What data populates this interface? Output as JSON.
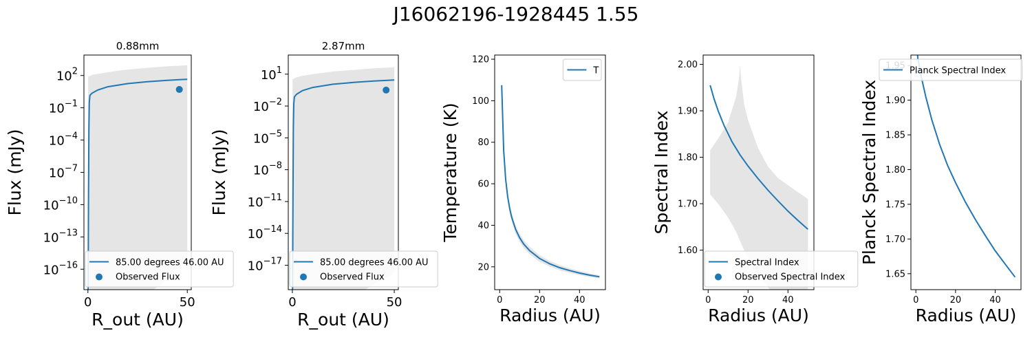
{
  "figure": {
    "title": "J16062196-1928445  1.55"
  },
  "colors": {
    "line": "#1f77b4",
    "band": "#e5e5e5",
    "axes": "#000000",
    "legend_border": "#cccccc"
  },
  "chart_data": [
    {
      "type": "line",
      "title": "0.88mm",
      "xlabel": "R_out (AU)",
      "ylabel": "Flux (mJy)",
      "yscale": "log",
      "xlim": [
        -2,
        52
      ],
      "ylim_log10": [
        -17.9,
        3.9
      ],
      "xticks": [
        0,
        50
      ],
      "yticks_exp": [
        2,
        -1,
        -4,
        -7,
        -10,
        -13,
        -16
      ],
      "legend_position": "lower right",
      "series": [
        {
          "name": "85.00 degrees 46.00 AU",
          "kind": "line",
          "x": [
            0.1,
            0.3,
            0.5,
            0.7,
            1,
            2,
            5,
            10,
            20,
            30,
            40,
            46,
            50
          ],
          "log10_y": [
            -19,
            -10,
            -3,
            -0.5,
            0.15,
            0.35,
            0.65,
            0.95,
            1.25,
            1.42,
            1.55,
            1.61,
            1.65
          ]
        },
        {
          "name": "Observed Flux",
          "kind": "scatter",
          "x": [
            46
          ],
          "log10_y": [
            0.7
          ]
        }
      ],
      "band": {
        "x": [
          0.1,
          1,
          2,
          5,
          10,
          15,
          20,
          30,
          40,
          50
        ],
        "upper_log10": [
          1.9,
          1.95,
          2.05,
          2.15,
          2.3,
          2.45,
          2.55,
          2.72,
          2.85,
          2.95
        ],
        "lower_log10": [
          -17,
          -18,
          -18.8,
          -19.5,
          -19.9,
          -20.5,
          -19.9,
          -18.3,
          -17.0,
          -15.0
        ]
      }
    },
    {
      "type": "line",
      "title": "2.87mm",
      "xlabel": "R_out (AU)",
      "ylabel": "Flux (mJy)",
      "yscale": "log",
      "xlim": [
        -2,
        52
      ],
      "ylim_log10": [
        -19.3,
        2.8
      ],
      "xticks": [
        0,
        50
      ],
      "yticks_exp": [
        1,
        -2,
        -5,
        -8,
        -11,
        -14,
        -17
      ],
      "legend_position": "lower right",
      "series": [
        {
          "name": "85.00 degrees 46.00 AU",
          "kind": "line",
          "x": [
            0.1,
            0.3,
            0.5,
            0.7,
            1,
            2,
            5,
            10,
            20,
            30,
            40,
            46,
            50
          ],
          "log10_y": [
            -20,
            -11,
            -4,
            -1.8,
            -1.15,
            -0.9,
            -0.55,
            -0.25,
            0.05,
            0.22,
            0.35,
            0.41,
            0.45
          ]
        },
        {
          "name": "Observed Flux",
          "kind": "scatter",
          "x": [
            46
          ],
          "log10_y": [
            -0.5
          ]
        }
      ],
      "band": {
        "x": [
          0.1,
          1,
          2,
          5,
          10,
          15,
          20,
          30,
          40,
          50
        ],
        "upper_log10": [
          0.5,
          0.6,
          0.7,
          0.85,
          1.0,
          1.12,
          1.25,
          1.4,
          1.55,
          1.65
        ],
        "lower_log10": [
          -19,
          -19.5,
          -20,
          -21,
          -21,
          -21.5,
          -21,
          -20,
          -18.8,
          -17.8
        ]
      }
    },
    {
      "type": "line",
      "xlabel": "Radius (AU)",
      "ylabel": "Temperature (K)",
      "xlim": [
        -2.5,
        53
      ],
      "ylim": [
        9,
        122
      ],
      "xticks": [
        0,
        20,
        40
      ],
      "yticks": [
        20,
        40,
        60,
        80,
        100,
        120
      ],
      "legend_position": "upper right",
      "series": [
        {
          "name": "T",
          "kind": "line",
          "x": [
            1,
            2,
            3,
            4,
            5,
            6,
            8,
            10,
            12,
            15,
            20,
            25,
            30,
            35,
            40,
            45,
            50
          ],
          "y": [
            107.5,
            76,
            62,
            53.8,
            48.1,
            43.9,
            38,
            34,
            31,
            27.8,
            24,
            21.5,
            19.6,
            18.2,
            17,
            16,
            15.2
          ]
        }
      ],
      "band": {
        "x": [
          1,
          2,
          3,
          4,
          5,
          6,
          8,
          10,
          12,
          15,
          20,
          25,
          30,
          35,
          40,
          45,
          50
        ],
        "upper": [
          108.5,
          77.5,
          63.5,
          55.5,
          50,
          45.8,
          40,
          36,
          33,
          29.6,
          25.6,
          22.9,
          20.9,
          19.3,
          18,
          16.9,
          16
        ],
        "lower": [
          106.5,
          74.5,
          60.5,
          52,
          46.2,
          42,
          36,
          32,
          29,
          26,
          22.4,
          20.1,
          18.3,
          17.1,
          16,
          15.1,
          14.4
        ]
      }
    },
    {
      "type": "line",
      "xlabel": "Radius (AU)",
      "ylabel": "Spectral Index",
      "xlim": [
        -2.5,
        53
      ],
      "ylim": [
        1.515,
        2.02
      ],
      "xticks": [
        0,
        20,
        40
      ],
      "yticks": [
        1.6,
        1.7,
        1.8,
        1.9,
        2.0
      ],
      "legend_position": "lower right",
      "series": [
        {
          "name": "Spectral Index",
          "kind": "line",
          "x": [
            1,
            3,
            5,
            8,
            12,
            16,
            20,
            25,
            30,
            35,
            40,
            45,
            50
          ],
          "y": [
            1.955,
            1.925,
            1.9,
            1.868,
            1.833,
            1.805,
            1.781,
            1.754,
            1.729,
            1.706,
            1.684,
            1.664,
            1.645
          ]
        },
        {
          "name": "Observed Spectral Index",
          "kind": "scatter",
          "x": [],
          "y": []
        }
      ],
      "band": {
        "x": [
          1,
          5,
          10,
          14,
          15.5,
          16,
          16.5,
          18,
          20,
          25,
          30,
          35,
          40,
          45,
          50
        ],
        "upper": [
          1.815,
          1.84,
          1.875,
          1.93,
          1.97,
          2.0,
          1.97,
          1.915,
          1.88,
          1.82,
          1.78,
          1.755,
          1.74,
          1.725,
          1.71
        ],
        "lower": [
          1.72,
          1.7,
          1.67,
          1.64,
          1.625,
          1.62,
          1.615,
          1.6,
          1.585,
          1.55,
          1.52,
          1.49,
          1.46,
          1.43,
          1.4
        ]
      }
    },
    {
      "type": "line",
      "xlabel": "Radius (AU)",
      "ylabel": "Planck Spectral Index",
      "xlim": [
        -2.5,
        53
      ],
      "ylim": [
        1.627,
        1.965
      ],
      "xticks": [
        0,
        20,
        40
      ],
      "yticks": [
        1.65,
        1.7,
        1.75,
        1.8,
        1.85,
        1.9,
        1.95
      ],
      "legend_position": "upper right",
      "series": [
        {
          "name": "Planck Spectral Index",
          "kind": "line",
          "x": [
            0.5,
            1,
            2,
            3,
            5,
            8,
            12,
            16,
            20,
            25,
            30,
            35,
            40,
            45,
            50
          ],
          "y": [
            1.975,
            1.96,
            1.945,
            1.93,
            1.905,
            1.872,
            1.836,
            1.806,
            1.781,
            1.753,
            1.728,
            1.705,
            1.683,
            1.664,
            1.645
          ]
        }
      ]
    }
  ]
}
